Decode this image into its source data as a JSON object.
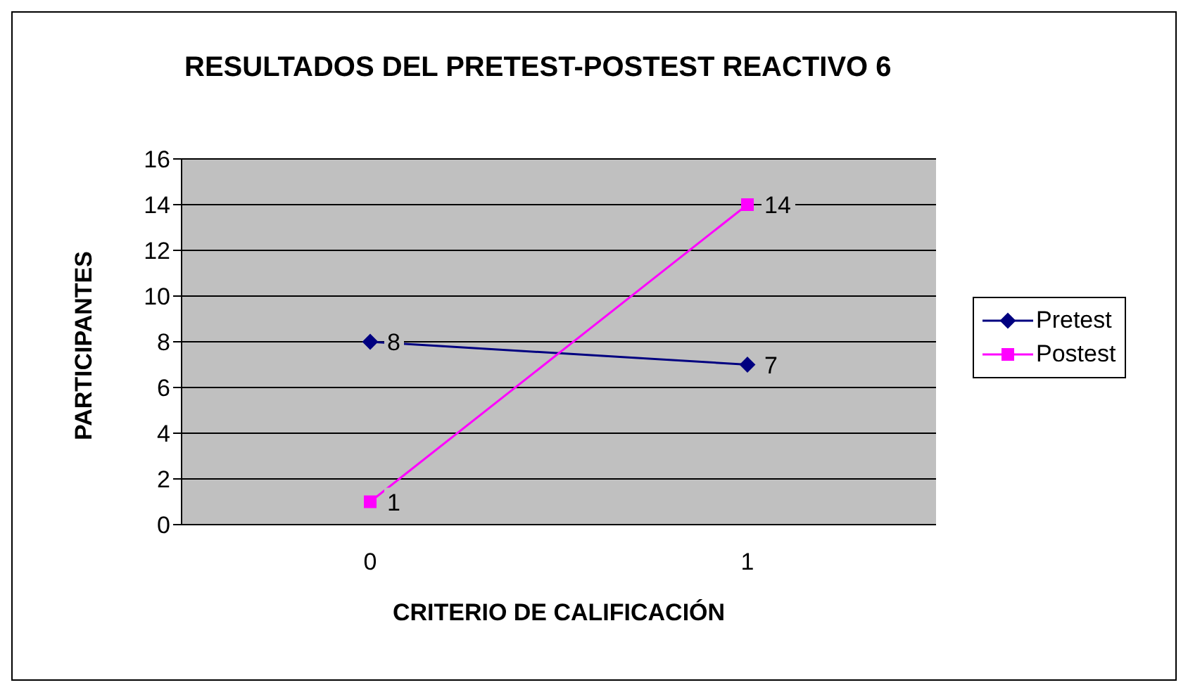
{
  "chart_data": {
    "type": "line",
    "title": "RESULTADOS DEL PRETEST-POSTEST REACTIVO 6",
    "xlabel": "CRITERIO DE CALIFICACIÓN",
    "ylabel": "PARTICIPANTES",
    "categories": [
      "0",
      "1"
    ],
    "series": [
      {
        "name": "Pretest",
        "color": "#000080",
        "marker": "diamond",
        "values": [
          8,
          7
        ]
      },
      {
        "name": "Postest",
        "color": "#ff00ff",
        "marker": "square",
        "values": [
          1,
          14
        ]
      }
    ],
    "ylim": [
      0,
      16
    ],
    "yticks": [
      0,
      2,
      4,
      6,
      8,
      10,
      12,
      14,
      16
    ],
    "grid": "y",
    "legend": "right",
    "data_labels": true
  }
}
